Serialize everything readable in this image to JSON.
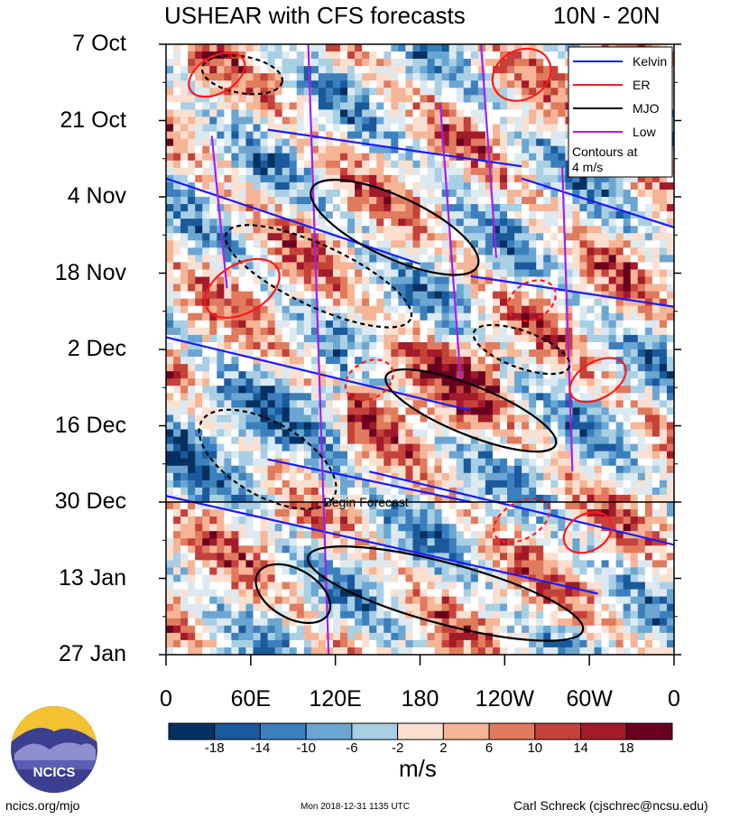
{
  "title_left": "USHEAR with CFS forecasts",
  "title_right": "10N - 20N",
  "units": "m/s",
  "footer": {
    "site": "ncics.org/mjo",
    "timestamp": "Mon 2018-12-31 1135 UTC",
    "author": "Carl Schreck (cjschrec@ncsu.edu)"
  },
  "logo_text": "NCICS",
  "begin_forecast": "Begin Forecast",
  "legend": {
    "items": [
      {
        "label": "Kelvin",
        "color": "#1a1aff"
      },
      {
        "label": "ER",
        "color": "#ff1a1a"
      },
      {
        "label": "MJO",
        "color": "#000000"
      },
      {
        "label": "Low",
        "color": "#a020f0"
      }
    ],
    "note": "Contours at\n4 m/s"
  },
  "chart_data": {
    "type": "heatmap",
    "variable": "USHEAR",
    "yaxis_ticks": [
      "7 Oct",
      "21 Oct",
      "4 Nov",
      "18 Nov",
      "2 Dec",
      "16 Dec",
      "30 Dec",
      "13 Jan",
      "27 Jan"
    ],
    "xaxis_ticks": [
      "0",
      "60E",
      "120E",
      "180",
      "120W",
      "60W",
      "0"
    ],
    "colorbar": {
      "labels": [
        "-18",
        "-14",
        "-10",
        "-6",
        "-2",
        "2",
        "6",
        "10",
        "14",
        "18"
      ],
      "colors": [
        "#053061",
        "#1a5a9c",
        "#3b80bd",
        "#6ba6d2",
        "#a9cfe4",
        "#dde9f1",
        "#ffffff",
        "#fbe0d1",
        "#f5b596",
        "#e07b5d",
        "#c5423a",
        "#a31a2a",
        "#6a0020"
      ]
    },
    "contour_interval": "4 m/s",
    "series": [
      {
        "name": "Kelvin",
        "color": "#1a1aff"
      },
      {
        "name": "ER",
        "color": "#ff1a1a"
      },
      {
        "name": "MJO",
        "color": "#000000"
      },
      {
        "name": "Low",
        "color": "#a020f0"
      }
    ],
    "forecast_start": "30 Dec"
  }
}
